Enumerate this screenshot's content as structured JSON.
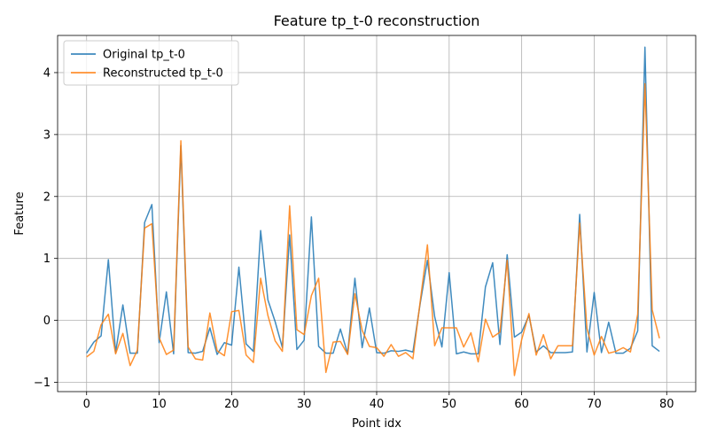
{
  "chart_data": {
    "type": "line",
    "title": "Feature tp_t-0 reconstruction",
    "xlabel": "Point idx",
    "ylabel": "Feature",
    "xlim": [
      -4,
      84
    ],
    "ylim": [
      -1.15,
      4.6
    ],
    "xticks": [
      0,
      10,
      20,
      30,
      40,
      50,
      60,
      70,
      80
    ],
    "yticks": [
      -1,
      0,
      1,
      2,
      3,
      4
    ],
    "grid": true,
    "legend": "top-left",
    "series": [
      {
        "name": "Original tp_t-0",
        "color": "#1f77b4",
        "x": [
          0,
          1,
          2,
          3,
          4,
          5,
          6,
          7,
          8,
          9,
          10,
          11,
          12,
          13,
          14,
          15,
          16,
          17,
          18,
          19,
          20,
          21,
          22,
          23,
          24,
          25,
          26,
          27,
          28,
          29,
          30,
          31,
          32,
          33,
          34,
          35,
          36,
          37,
          38,
          39,
          40,
          41,
          42,
          43,
          44,
          45,
          46,
          47,
          48,
          49,
          50,
          51,
          52,
          53,
          54,
          55,
          56,
          57,
          58,
          59,
          60,
          61,
          62,
          63,
          64,
          65,
          66,
          67,
          68,
          69,
          70,
          71,
          72,
          73,
          74,
          75,
          76,
          77,
          78,
          79
        ],
        "values": [
          -0.53,
          -0.35,
          -0.25,
          0.98,
          -0.52,
          0.25,
          -0.53,
          -0.53,
          1.58,
          1.87,
          -0.36,
          0.46,
          -0.54,
          2.82,
          -0.52,
          -0.53,
          -0.5,
          -0.12,
          -0.55,
          -0.36,
          -0.4,
          0.86,
          -0.38,
          -0.5,
          1.45,
          0.33,
          -0.02,
          -0.44,
          1.38,
          -0.47,
          -0.32,
          1.67,
          -0.42,
          -0.53,
          -0.53,
          -0.14,
          -0.54,
          0.68,
          -0.44,
          0.2,
          -0.52,
          -0.53,
          -0.49,
          -0.5,
          -0.48,
          -0.51,
          0.27,
          0.97,
          0.06,
          -0.43,
          0.77,
          -0.54,
          -0.51,
          -0.54,
          -0.54,
          0.54,
          0.93,
          -0.39,
          1.06,
          -0.27,
          -0.19,
          0.08,
          -0.51,
          -0.41,
          -0.52,
          -0.52,
          -0.52,
          -0.51,
          1.71,
          -0.51,
          0.45,
          -0.52,
          -0.03,
          -0.53,
          -0.53,
          -0.45,
          -0.17,
          4.41,
          -0.41,
          -0.5
        ]
      },
      {
        "name": "Reconstructed tp_t-0",
        "color": "#ff7f0e",
        "x": [
          0,
          1,
          2,
          3,
          4,
          5,
          6,
          7,
          8,
          9,
          10,
          11,
          12,
          13,
          14,
          15,
          16,
          17,
          18,
          19,
          20,
          21,
          22,
          23,
          24,
          25,
          26,
          27,
          28,
          29,
          30,
          31,
          32,
          33,
          34,
          35,
          36,
          37,
          38,
          39,
          40,
          41,
          42,
          43,
          44,
          45,
          46,
          47,
          48,
          49,
          50,
          51,
          52,
          53,
          54,
          55,
          56,
          57,
          58,
          59,
          60,
          61,
          62,
          63,
          64,
          65,
          66,
          67,
          68,
          69,
          70,
          71,
          72,
          73,
          74,
          75,
          76,
          77,
          78,
          79
        ],
        "values": [
          -0.59,
          -0.5,
          -0.07,
          0.1,
          -0.54,
          -0.21,
          -0.73,
          -0.48,
          1.49,
          1.56,
          -0.28,
          -0.55,
          -0.48,
          2.9,
          -0.43,
          -0.62,
          -0.64,
          0.12,
          -0.49,
          -0.57,
          0.14,
          0.16,
          -0.56,
          -0.68,
          0.68,
          0.08,
          -0.33,
          -0.5,
          1.85,
          -0.15,
          -0.23,
          0.4,
          0.68,
          -0.84,
          -0.35,
          -0.34,
          -0.55,
          0.43,
          -0.16,
          -0.42,
          -0.44,
          -0.58,
          -0.39,
          -0.58,
          -0.52,
          -0.62,
          0.3,
          1.22,
          -0.41,
          -0.12,
          -0.12,
          -0.12,
          -0.43,
          -0.2,
          -0.67,
          0.02,
          -0.27,
          -0.19,
          0.97,
          -0.89,
          -0.31,
          0.11,
          -0.56,
          -0.23,
          -0.62,
          -0.41,
          -0.41,
          -0.41,
          1.57,
          -0.13,
          -0.56,
          -0.26,
          -0.53,
          -0.5,
          -0.44,
          -0.51,
          0.1,
          3.82,
          0.17,
          -0.29
        ]
      }
    ]
  }
}
